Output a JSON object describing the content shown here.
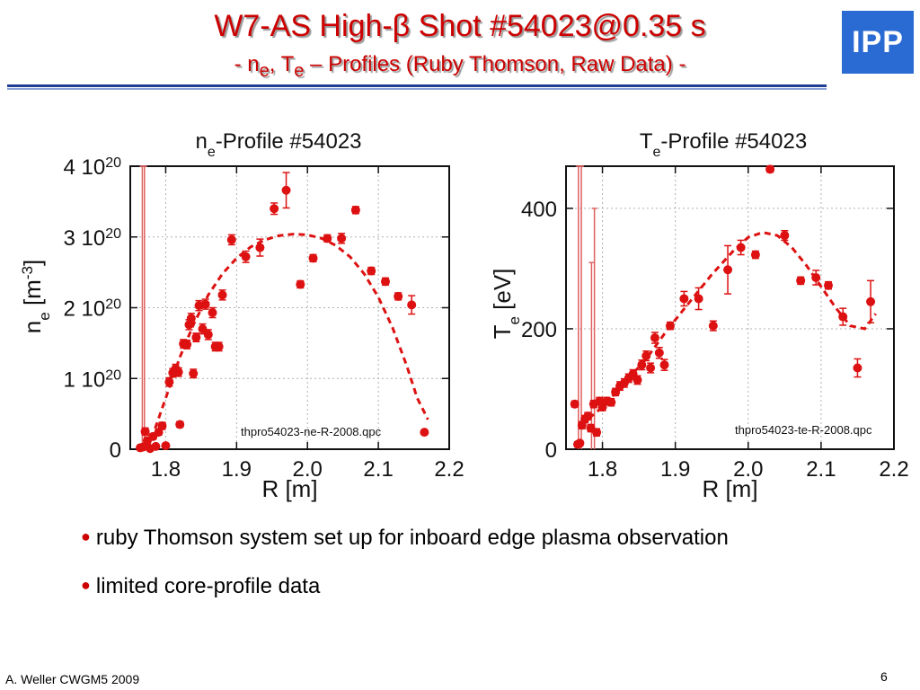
{
  "slide": {
    "title": "W7-AS High-β Shot #54023@0.35 s",
    "subtitle": {
      "prefix": "- n",
      "e_sub": "e",
      "mid": ", T",
      "t_sub": "e",
      "suffix": " – Profiles (Ruby Thomson, Raw Data) -"
    },
    "logo": "IPP",
    "bullets": [
      "ruby Thomson system set up for inboard edge plasma observation",
      "limited core-profile data"
    ],
    "bullet_marker": "●",
    "footer_left": "A. Weller CWGM5 2009",
    "page_number": "6"
  },
  "colors": {
    "accent": "#cc0000",
    "rule": "#1f3f94",
    "logo_bg": "#2a6bd3",
    "grid": "#b0b0b0"
  },
  "chart_data": [
    {
      "type": "scatter",
      "title": {
        "base": "n",
        "sub": "e",
        "rest": "-Profile #54023"
      },
      "xlabel": "R [m]",
      "ylabel": {
        "base": "n",
        "sub": "e",
        "rest": " [m",
        "sup": "-3",
        "end": "]"
      },
      "xlim": [
        1.75,
        2.2
      ],
      "ylim": [
        0,
        4e+20
      ],
      "xticks": [
        1.8,
        1.9,
        2.0,
        2.1,
        2.2
      ],
      "xtick_labels": [
        "1.8",
        "1.9",
        "2.0",
        "2.1",
        "2.2"
      ],
      "yticks": [
        0,
        1e+20,
        2e+20,
        3e+20,
        4e+20
      ],
      "ytick_labels": [
        {
          "m": "0",
          "e": ""
        },
        {
          "m": "1 10",
          "e": "20"
        },
        {
          "m": "2 10",
          "e": "20"
        },
        {
          "m": "3 10",
          "e": "20"
        },
        {
          "m": "4 10",
          "e": "20"
        }
      ],
      "grid": true,
      "annotation": "thpro54023-ne-R-2008.qpc",
      "series": [
        {
          "style": "points-with-errorbars",
          "color": "#dd1111",
          "points": [
            {
              "x": 1.764,
              "y": 2e+18,
              "err": 2e+18
            },
            {
              "x": 1.768,
              "y": 3e+18,
              "err": 2e+18
            },
            {
              "x": 1.771,
              "y": 2.5e+19,
              "err": 5e+18
            },
            {
              "x": 1.774,
              "y": 1.2e+19,
              "err": 4e+18
            },
            {
              "x": 1.778,
              "y": 1e+18,
              "err": 2e+18
            },
            {
              "x": 1.782,
              "y": 1.8e+19,
              "err": 4e+18
            },
            {
              "x": 1.786,
              "y": 4e+18,
              "err": 2e+18
            },
            {
              "x": 1.79,
              "y": 2.4e+19,
              "err": 4e+18
            },
            {
              "x": 1.795,
              "y": 3.3e+19,
              "err": 5e+18
            },
            {
              "x": 1.8,
              "y": 5e+18,
              "err": 2e+18
            },
            {
              "x": 1.805,
              "y": 9.5e+19,
              "err": 6e+18
            },
            {
              "x": 1.81,
              "y": 1.08e+20,
              "err": 6e+18
            },
            {
              "x": 1.814,
              "y": 1.14e+20,
              "err": 6e+18
            },
            {
              "x": 1.818,
              "y": 1.09e+20,
              "err": 6e+18
            },
            {
              "x": 1.82,
              "y": 3.5e+19,
              "err": 4e+18
            },
            {
              "x": 1.825,
              "y": 1.49e+20,
              "err": 6e+18
            },
            {
              "x": 1.83,
              "y": 1.48e+20,
              "err": 6e+18
            },
            {
              "x": 1.833,
              "y": 1.76e+20,
              "err": 7e+18
            },
            {
              "x": 1.836,
              "y": 1.85e+20,
              "err": 7e+18
            },
            {
              "x": 1.839,
              "y": 1.07e+20,
              "err": 6e+18
            },
            {
              "x": 1.843,
              "y": 1.58e+20,
              "err": 6e+18
            },
            {
              "x": 1.847,
              "y": 2.03e+20,
              "err": 7e+18
            },
            {
              "x": 1.852,
              "y": 1.7e+20,
              "err": 7e+18
            },
            {
              "x": 1.856,
              "y": 2.05e+20,
              "err": 7e+18
            },
            {
              "x": 1.86,
              "y": 1.62e+20,
              "err": 7e+18
            },
            {
              "x": 1.866,
              "y": 1.93e+20,
              "err": 7e+18
            },
            {
              "x": 1.87,
              "y": 1.45e+20,
              "err": 6e+18
            },
            {
              "x": 1.875,
              "y": 1.45e+20,
              "err": 6e+18
            },
            {
              "x": 1.88,
              "y": 2.18e+20,
              "err": 7e+18
            },
            {
              "x": 1.893,
              "y": 2.96e+20,
              "err": 7e+18
            },
            {
              "x": 1.913,
              "y": 2.72e+20,
              "err": 8e+18
            },
            {
              "x": 1.933,
              "y": 2.85e+20,
              "err": 1.2e+19
            },
            {
              "x": 1.953,
              "y": 3.4e+20,
              "err": 8e+18
            },
            {
              "x": 1.97,
              "y": 3.66e+20,
              "err": 2.5e+19
            },
            {
              "x": 1.99,
              "y": 2.33e+20,
              "err": 5e+18
            },
            {
              "x": 2.008,
              "y": 2.7e+20,
              "err": 5e+18
            },
            {
              "x": 2.028,
              "y": 2.98e+20,
              "err": 5e+18
            },
            {
              "x": 2.048,
              "y": 2.98e+20,
              "err": 7e+18
            },
            {
              "x": 2.068,
              "y": 3.38e+20,
              "err": 5e+18
            },
            {
              "x": 2.09,
              "y": 2.52e+20,
              "err": 5e+18
            },
            {
              "x": 2.11,
              "y": 2.37e+20,
              "err": 5e+18
            },
            {
              "x": 2.128,
              "y": 2.16e+20,
              "err": 5e+18
            },
            {
              "x": 2.147,
              "y": 2.04e+20,
              "err": 1.3e+19
            },
            {
              "x": 2.165,
              "y": 2.4e+19,
              "err": 3e+18
            }
          ],
          "large_errorbars": [
            {
              "x": 1.767,
              "y": 5e+18,
              "lo": 0,
              "hi": 4e+20
            },
            {
              "x": 1.77,
              "y": 5e+18,
              "lo": 0,
              "hi": 4e+20
            }
          ]
        },
        {
          "style": "dashed-fit",
          "color": "#dd1111",
          "x": [
            1.78,
            1.8,
            1.82,
            1.84,
            1.86,
            1.88,
            1.9,
            1.92,
            1.94,
            1.96,
            1.98,
            2.0,
            2.02,
            2.04,
            2.06,
            2.08,
            2.1,
            2.12,
            2.14,
            2.155,
            2.17
          ],
          "y": [
            1.5e+19,
            7.2e+19,
            1.3e+20,
            1.78e+20,
            2.18e+20,
            2.48e+20,
            2.7e+20,
            2.86e+20,
            2.96e+20,
            3.02e+20,
            3.04e+20,
            3.03e+20,
            2.98e+20,
            2.88e+20,
            2.72e+20,
            2.48e+20,
            2.15e+20,
            1.72e+20,
            1.18e+20,
            7.2e+19,
            4.2e+19
          ]
        }
      ]
    },
    {
      "type": "scatter",
      "title": {
        "base": "T",
        "sub": "e",
        "rest": "-Profile #54023"
      },
      "xlabel": "R [m]",
      "ylabel": {
        "base": "T",
        "sub": "e",
        "rest": " [eV]",
        "sup": "",
        "end": ""
      },
      "xlim": [
        1.75,
        2.2
      ],
      "ylim": [
        0,
        470
      ],
      "xticks": [
        1.8,
        1.9,
        2.0,
        2.1,
        2.2
      ],
      "xtick_labels": [
        "1.8",
        "1.9",
        "2.0",
        "2.1",
        "2.2"
      ],
      "yticks": [
        0,
        200,
        400
      ],
      "ytick_labels": [
        {
          "m": "0",
          "e": ""
        },
        {
          "m": "200",
          "e": ""
        },
        {
          "m": "400",
          "e": ""
        }
      ],
      "grid": true,
      "annotation": "thpro54023-te-R-2008.qpc",
      "series": [
        {
          "style": "points-with-errorbars",
          "color": "#dd1111",
          "points": [
            {
              "x": 1.762,
              "y": 75,
              "err": 5
            },
            {
              "x": 1.766,
              "y": 8,
              "err": 4
            },
            {
              "x": 1.769,
              "y": 10,
              "err": 4
            },
            {
              "x": 1.772,
              "y": 40,
              "err": 6
            },
            {
              "x": 1.776,
              "y": 50,
              "err": 6
            },
            {
              "x": 1.78,
              "y": 55,
              "err": 6
            },
            {
              "x": 1.784,
              "y": 35,
              "err": 6
            },
            {
              "x": 1.788,
              "y": 75,
              "err": 6
            },
            {
              "x": 1.792,
              "y": 28,
              "err": 6
            },
            {
              "x": 1.796,
              "y": 80,
              "err": 6
            },
            {
              "x": 1.8,
              "y": 70,
              "err": 6
            },
            {
              "x": 1.806,
              "y": 80,
              "err": 6
            },
            {
              "x": 1.812,
              "y": 78,
              "err": 6
            },
            {
              "x": 1.818,
              "y": 95,
              "err": 6
            },
            {
              "x": 1.824,
              "y": 105,
              "err": 7
            },
            {
              "x": 1.83,
              "y": 110,
              "err": 7
            },
            {
              "x": 1.836,
              "y": 118,
              "err": 7
            },
            {
              "x": 1.842,
              "y": 125,
              "err": 7
            },
            {
              "x": 1.848,
              "y": 115,
              "err": 7
            },
            {
              "x": 1.854,
              "y": 140,
              "err": 8
            },
            {
              "x": 1.86,
              "y": 155,
              "err": 8
            },
            {
              "x": 1.866,
              "y": 135,
              "err": 8
            },
            {
              "x": 1.872,
              "y": 185,
              "err": 9
            },
            {
              "x": 1.878,
              "y": 160,
              "err": 9
            },
            {
              "x": 1.885,
              "y": 140,
              "err": 9
            },
            {
              "x": 1.893,
              "y": 205,
              "err": 6
            },
            {
              "x": 1.912,
              "y": 250,
              "err": 12
            },
            {
              "x": 1.932,
              "y": 250,
              "err": 18
            },
            {
              "x": 1.952,
              "y": 205,
              "err": 8
            },
            {
              "x": 1.972,
              "y": 298,
              "err": 40
            },
            {
              "x": 1.99,
              "y": 335,
              "err": 12
            },
            {
              "x": 2.01,
              "y": 323,
              "err": 6
            },
            {
              "x": 2.03,
              "y": 465,
              "err": 5
            },
            {
              "x": 2.05,
              "y": 355,
              "err": 8
            },
            {
              "x": 2.072,
              "y": 280,
              "err": 6
            },
            {
              "x": 2.093,
              "y": 285,
              "err": 12
            },
            {
              "x": 2.11,
              "y": 272,
              "err": 6
            },
            {
              "x": 2.13,
              "y": 220,
              "err": 14
            },
            {
              "x": 2.15,
              "y": 135,
              "err": 15
            },
            {
              "x": 2.168,
              "y": 245,
              "err": 35
            }
          ],
          "large_errorbars": [
            {
              "x": 1.767,
              "y": 30,
              "lo": 0,
              "hi": 470
            },
            {
              "x": 1.771,
              "y": 30,
              "lo": 0,
              "hi": 470
            },
            {
              "x": 1.785,
              "y": 45,
              "lo": 0,
              "hi": 310
            },
            {
              "x": 1.789,
              "y": 45,
              "lo": 0,
              "hi": 400
            }
          ]
        },
        {
          "style": "dashed-fit",
          "color": "#dd1111",
          "x": [
            1.77,
            1.8,
            1.83,
            1.86,
            1.89,
            1.92,
            1.95,
            1.98,
            2.0,
            2.02,
            2.04,
            2.06,
            2.08,
            2.1,
            2.12,
            2.14,
            2.16,
            2.175
          ],
          "y": [
            40,
            70,
            110,
            150,
            200,
            245,
            290,
            330,
            352,
            360,
            355,
            335,
            305,
            270,
            235,
            205,
            200,
            225
          ]
        }
      ]
    }
  ]
}
